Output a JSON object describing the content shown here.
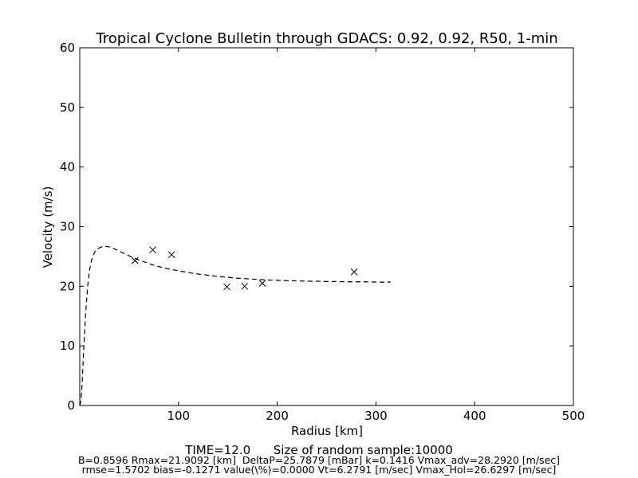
{
  "chart_data": {
    "type": "scatter",
    "title": "Tropical Cyclone Bulletin through GDACS: 0.92, 0.92, R50, 1-min",
    "xlabel": "Radius [km]",
    "ylabel": "Velocity (m/s)",
    "xlim": [
      0,
      500
    ],
    "ylim": [
      0,
      60
    ],
    "xticks": [
      100,
      200,
      300,
      400,
      500
    ],
    "yticks": [
      0,
      10,
      20,
      30,
      40,
      50,
      60
    ],
    "grid": false,
    "series": [
      {
        "kind": "line",
        "style": "dashed",
        "color": "#000000",
        "x": [
          0,
          1,
          2,
          3,
          4,
          6,
          8,
          10,
          12,
          15,
          18,
          21.9,
          25,
          30,
          35,
          40,
          50,
          60,
          70,
          80,
          90,
          100,
          110,
          120,
          130,
          140,
          150,
          160,
          170,
          180,
          190,
          200,
          210,
          220,
          230,
          240,
          250,
          260,
          270,
          280,
          290,
          300,
          310,
          315
        ],
        "y": [
          0,
          0.6,
          2.5,
          5.8,
          9.5,
          15.5,
          20.0,
          22.8,
          24.4,
          25.7,
          26.3,
          26.6,
          26.7,
          26.6,
          26.3,
          25.9,
          25.1,
          24.4,
          23.8,
          23.3,
          22.9,
          22.6,
          22.3,
          22.05,
          21.85,
          21.65,
          21.5,
          21.35,
          21.25,
          21.15,
          21.05,
          21.0,
          20.95,
          20.9,
          20.85,
          20.85,
          20.8,
          20.8,
          20.75,
          20.75,
          20.75,
          20.7,
          20.7,
          20.7
        ]
      },
      {
        "kind": "scatter",
        "marker": "x",
        "color": "#000000",
        "x": [
          56,
          74,
          93,
          149,
          167,
          185,
          278
        ],
        "y": [
          24.3,
          26.1,
          25.3,
          19.9,
          20.0,
          20.5,
          22.4
        ]
      }
    ]
  },
  "footer": {
    "line1": "TIME=12.0      Size of random sample:10000",
    "line2": "B=0.8596 Rmax=21.9092 [km]  DeltaP=25.7879 [mBar] k=0.1416 Vmax_adv=28.2920 [m/sec]",
    "line3": "rmse=1.5702 bias=-0.1271 value(\\%)=0.0000 Vt=6.2791 [m/sec] Vmax_Hol=26.6297 [m/sec]"
  }
}
